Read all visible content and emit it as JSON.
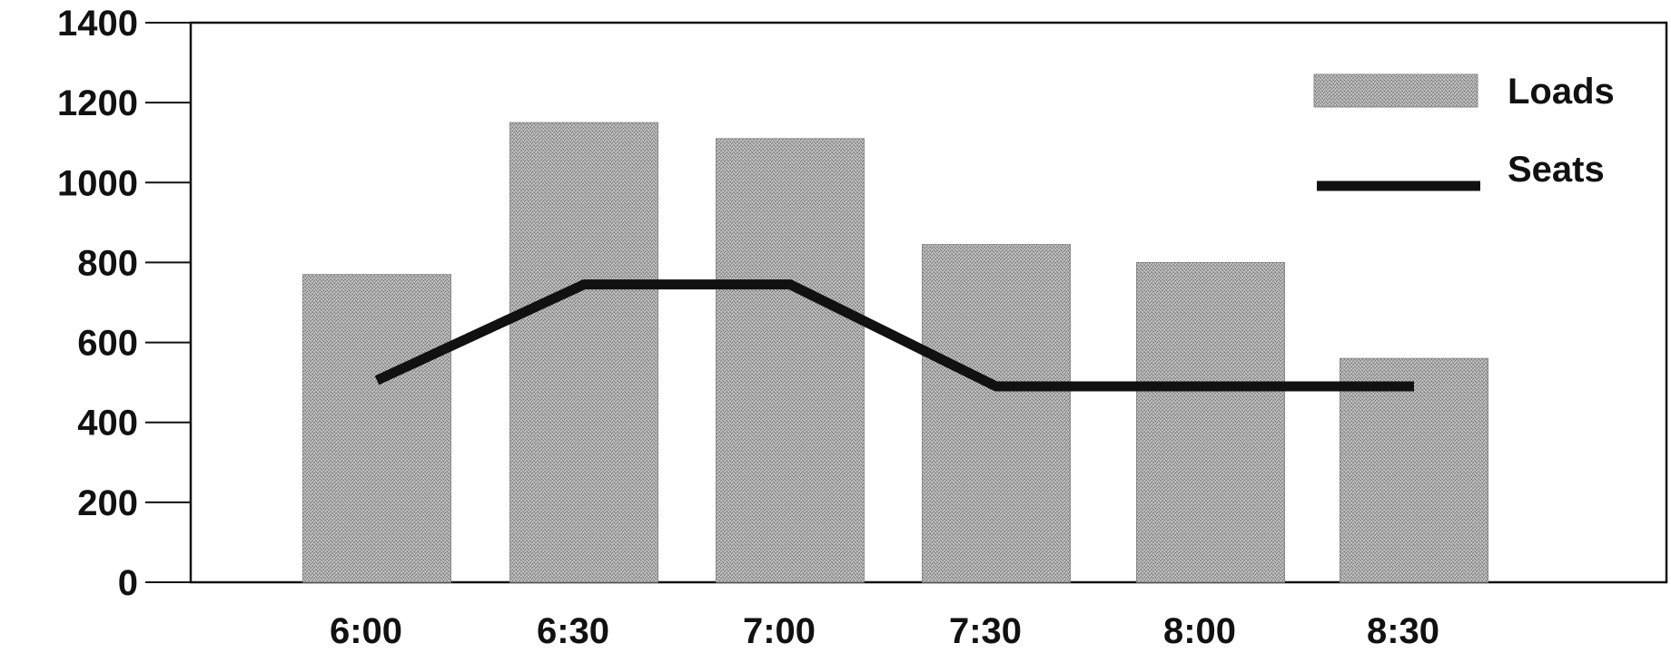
{
  "chart_data": {
    "type": "bar",
    "categories": [
      "6:00",
      "6:30",
      "7:00",
      "7:30",
      "8:00",
      "8:30"
    ],
    "series": [
      {
        "name": "Loads",
        "type": "bar",
        "values": [
          770,
          1150,
          1110,
          845,
          800,
          560
        ],
        "color": "#a8a8a8"
      },
      {
        "name": "Seats",
        "type": "line",
        "values": [
          505,
          745,
          745,
          490,
          490,
          490
        ],
        "color": "#111111"
      }
    ],
    "title": "",
    "xlabel": "",
    "ylabel": "",
    "ylim": [
      0,
      1400
    ],
    "yticks": [
      0,
      200,
      400,
      600,
      800,
      1000,
      1200,
      1400
    ],
    "grid": false,
    "legend": "top-right"
  }
}
